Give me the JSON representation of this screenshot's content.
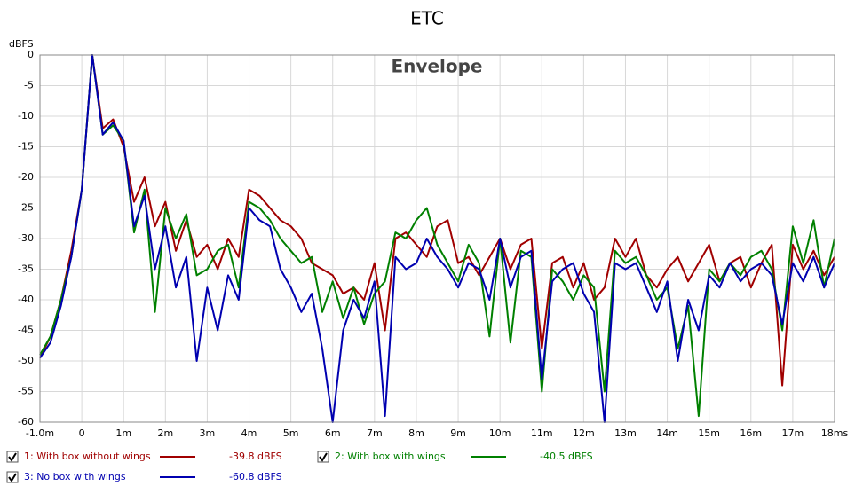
{
  "chart_data": {
    "type": "line",
    "title": "ETC",
    "annotation": "Envelope",
    "y_label": "dBFS",
    "x": [
      -1,
      -0.75,
      -0.5,
      -0.25,
      0,
      0.25,
      0.5,
      0.75,
      1,
      1.25,
      1.5,
      1.75,
      2,
      2.25,
      2.5,
      2.75,
      3,
      3.25,
      3.5,
      3.75,
      4,
      4.25,
      4.5,
      4.75,
      5,
      5.25,
      5.5,
      5.75,
      6,
      6.25,
      6.5,
      6.75,
      7,
      7.25,
      7.5,
      7.75,
      8,
      8.25,
      8.5,
      8.75,
      9,
      9.25,
      9.5,
      9.75,
      10,
      10.25,
      10.5,
      10.75,
      11,
      11.25,
      11.5,
      11.75,
      12,
      12.25,
      12.5,
      12.75,
      13,
      13.25,
      13.5,
      13.75,
      14,
      14.25,
      14.5,
      14.75,
      15,
      15.25,
      15.5,
      15.75,
      16,
      16.25,
      16.5,
      16.75,
      17,
      17.25,
      17.5,
      17.75,
      18
    ],
    "series": [
      {
        "name": "1: With box without wings",
        "legend_value": "-39.8 dBFS",
        "color": "#a00000",
        "values": [
          -49.5,
          -46,
          -40,
          -32,
          -22,
          0,
          -12,
          -10.5,
          -15,
          -24,
          -20,
          -28,
          -24,
          -32,
          -27,
          -33,
          -31,
          -35,
          -30,
          -33,
          -22,
          -23,
          -25,
          -27,
          -28,
          -30,
          -34,
          -35,
          -36,
          -39,
          -38,
          -40,
          -34,
          -45,
          -30,
          -29,
          -31,
          -33,
          -28,
          -27,
          -34,
          -33,
          -36,
          -33,
          -30,
          -35,
          -31,
          -30,
          -48,
          -34,
          -33,
          -38,
          -34,
          -40,
          -38,
          -30,
          -33,
          -30,
          -36,
          -38,
          -35,
          -33,
          -37,
          -34,
          -31,
          -37,
          -34,
          -33,
          -38,
          -34,
          -31,
          -54,
          -31,
          -35,
          -32,
          -36,
          -33
        ]
      },
      {
        "name": "2: With box with wings",
        "legend_value": "-40.5 dBFS",
        "color": "#008000",
        "values": [
          -49,
          -46,
          -40,
          -33,
          -22,
          0,
          -13,
          -11.5,
          -14,
          -29,
          -22,
          -42,
          -25,
          -30,
          -26,
          -36,
          -35,
          -32,
          -31,
          -38,
          -24,
          -25,
          -27,
          -30,
          -32,
          -34,
          -33,
          -42,
          -37,
          -43,
          -38,
          -44,
          -39,
          -37,
          -29,
          -30,
          -27,
          -25,
          -31,
          -34,
          -37,
          -31,
          -34,
          -46,
          -30,
          -47,
          -32,
          -33,
          -55,
          -35,
          -37,
          -40,
          -36,
          -38,
          -55,
          -32,
          -34,
          -33,
          -36,
          -40,
          -38,
          -48,
          -41,
          -59,
          -35,
          -37,
          -34,
          -36,
          -33,
          -32,
          -35,
          -45,
          -28,
          -34,
          -27,
          -38,
          -30
        ]
      },
      {
        "name": "3: No box with wings",
        "legend_value": "-60.8 dBFS",
        "color": "#0000b0",
        "values": [
          -49.5,
          -47,
          -41,
          -33,
          -22,
          0,
          -13,
          -11,
          -14,
          -28,
          -23,
          -35,
          -28,
          -38,
          -33,
          -50,
          -38,
          -45,
          -36,
          -40,
          -25,
          -27,
          -28,
          -35,
          -38,
          -42,
          -39,
          -48,
          -60,
          -45,
          -40,
          -43,
          -37,
          -59,
          -33,
          -35,
          -34,
          -30,
          -33,
          -35,
          -38,
          -34,
          -35,
          -40,
          -30,
          -38,
          -33,
          -32,
          -53,
          -37,
          -35,
          -34,
          -39,
          -42,
          -60,
          -34,
          -35,
          -34,
          -38,
          -42,
          -37,
          -50,
          -40,
          -45,
          -36,
          -38,
          -34,
          -37,
          -35,
          -34,
          -36,
          -44,
          -34,
          -37,
          -33,
          -38,
          -34
        ]
      }
    ],
    "xlim": [
      -1,
      18
    ],
    "xticks": [
      {
        "value": -1,
        "label": "-1.0m"
      },
      0,
      {
        "value": 1,
        "label": "1m"
      },
      {
        "value": 2,
        "label": "2m"
      },
      {
        "value": 3,
        "label": "3m"
      },
      {
        "value": 4,
        "label": "4m"
      },
      {
        "value": 5,
        "label": "5m"
      },
      {
        "value": 6,
        "label": "6m"
      },
      {
        "value": 7,
        "label": "7m"
      },
      {
        "value": 8,
        "label": "8m"
      },
      {
        "value": 9,
        "label": "9m"
      },
      {
        "value": 10,
        "label": "10m"
      },
      {
        "value": 11,
        "label": "11m"
      },
      {
        "value": 12,
        "label": "12m"
      },
      {
        "value": 13,
        "label": "13m"
      },
      {
        "value": 14,
        "label": "14m"
      },
      {
        "value": 15,
        "label": "15m"
      },
      {
        "value": 16,
        "label": "16m"
      },
      {
        "value": 17,
        "label": "17m"
      },
      {
        "value": 18,
        "label": "18ms"
      }
    ],
    "ylim": [
      -60,
      0
    ],
    "yticks": [
      0,
      -5,
      -10,
      -15,
      -20,
      -25,
      -30,
      -35,
      -40,
      -45,
      -50,
      -55,
      -60
    ],
    "grid": true
  }
}
